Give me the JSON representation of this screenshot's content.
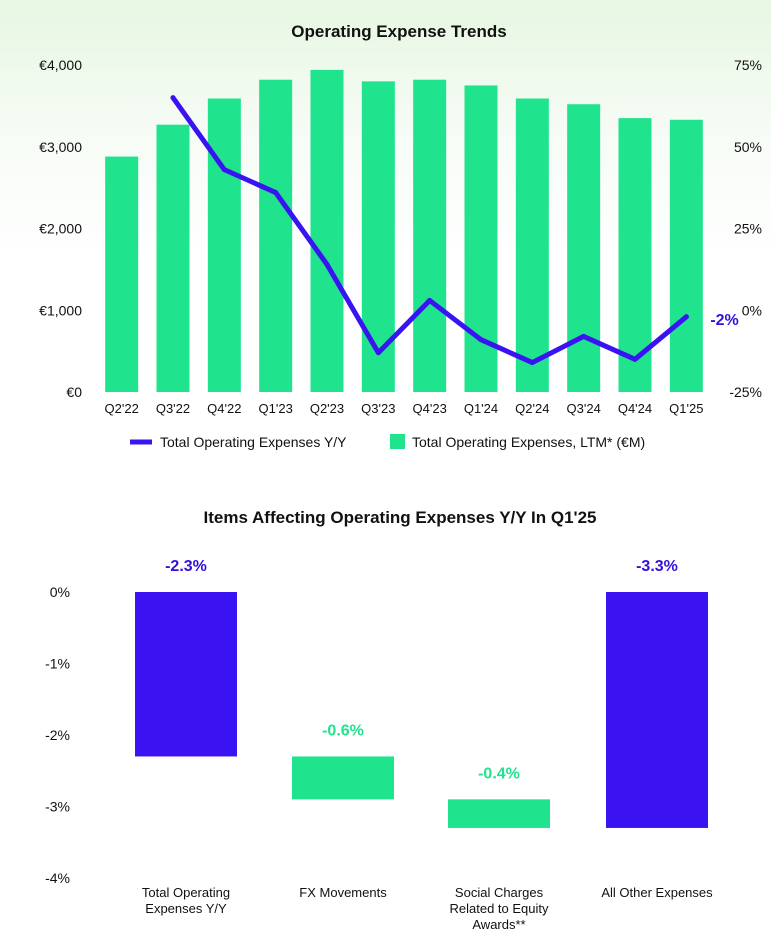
{
  "colors": {
    "green": "#1fe38d",
    "green_label": "#1fe38d",
    "blue": "#3b13f2",
    "blue_label": "#3510d8",
    "axis_text": "#111111"
  },
  "chart_data": [
    {
      "type": "bar+line",
      "title": "Operating Expense Trends",
      "categories": [
        "Q2'22",
        "Q3'22",
        "Q4'22",
        "Q1'23",
        "Q2'23",
        "Q3'23",
        "Q4'23",
        "Q1'24",
        "Q2'24",
        "Q3'24",
        "Q4'24",
        "Q1'25"
      ],
      "left_axis": {
        "ticks": [
          "€0",
          "€1,000",
          "€2,000",
          "€3,000",
          "€4,000"
        ],
        "ylim": [
          0,
          4000
        ]
      },
      "right_axis": {
        "ticks": [
          "-25%",
          "0%",
          "25%",
          "50%",
          "75%"
        ],
        "ylim": [
          -25,
          75
        ]
      },
      "series": [
        {
          "name": "Total Operating Expenses, LTM* (€M)",
          "type": "bar",
          "axis": "left",
          "values": [
            2880,
            3270,
            3590,
            3820,
            3940,
            3800,
            3820,
            3750,
            3590,
            3520,
            3350,
            3330
          ]
        },
        {
          "name": "Total Operating Expenses Y/Y",
          "type": "line",
          "axis": "right",
          "values": [
            null,
            65,
            43,
            36,
            14,
            -13,
            3,
            -9,
            -16,
            -8,
            -15,
            -2
          ]
        }
      ],
      "end_label": "-2%",
      "legend": "bottom"
    },
    {
      "type": "waterfall",
      "title": "Items Affecting Operating Expenses Y/Y In Q1'25",
      "categories": [
        "Total Operating\nExpenses Y/Y",
        "FX Movements",
        "Social Charges\nRelated to Equity\nAwards**",
        "All Other Expenses"
      ],
      "values": [
        -2.3,
        -0.6,
        -0.4,
        -3.3
      ],
      "kinds": [
        "total",
        "step",
        "step",
        "total"
      ],
      "labels": [
        "-2.3%",
        "-0.6%",
        "-0.4%",
        "-3.3%"
      ],
      "y_axis": {
        "ticks": [
          "0%",
          "-1%",
          "-2%",
          "-3%",
          "-4%"
        ],
        "ylim": [
          -4,
          0
        ]
      }
    }
  ]
}
